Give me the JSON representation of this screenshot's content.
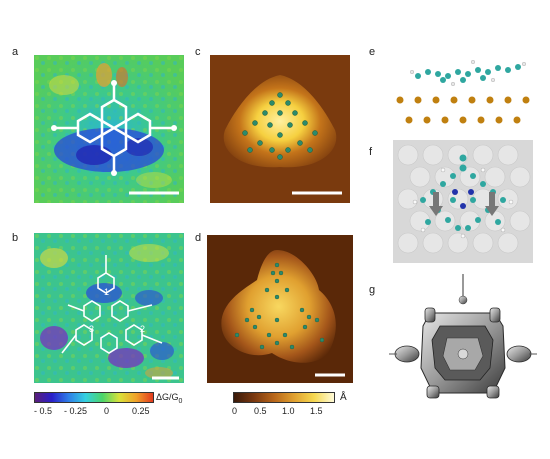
{
  "figure": {
    "panel_labels": [
      "a",
      "b",
      "c",
      "d",
      "e",
      "f",
      "g"
    ],
    "panel_markers": {
      "b": [
        "1",
        "2",
        "3"
      ]
    },
    "colorbar_left": {
      "ticks": [
        "- 0.5",
        "- 0.25",
        "0",
        "0.25"
      ],
      "unit_main": "ΔG/G",
      "unit_sub": "0",
      "colors": [
        "#5b1f7a",
        "#2a1fc9",
        "#2f7fe8",
        "#34d0e0",
        "#4bd56a",
        "#d9e23a",
        "#f0a22a",
        "#e23a1e"
      ]
    },
    "colorbar_right": {
      "ticks": [
        "0",
        "0.5",
        "1.0",
        "1.5"
      ],
      "unit": "Å",
      "colors": [
        "#3a1a0a",
        "#7a3810",
        "#b8661a",
        "#e0a030",
        "#f6d850",
        "#fffbd8"
      ]
    },
    "colors": {
      "dIdV_background": "#3dc28a",
      "topography_background": "#7a3a0e",
      "topography_bright": "#f4d050",
      "atom_c": "#2fa7a0",
      "atom_au": "#c08010"
    }
  }
}
